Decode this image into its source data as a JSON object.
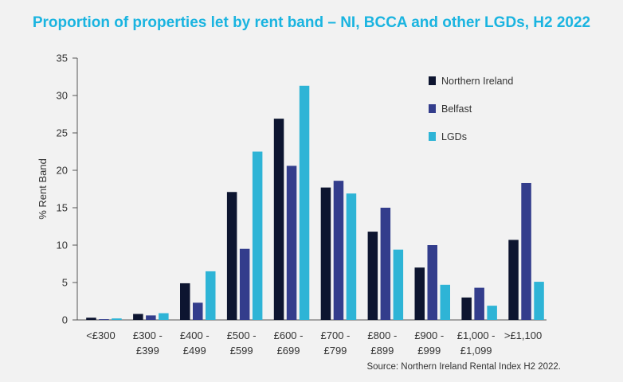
{
  "chart_data": {
    "type": "bar",
    "title": "Proportion of properties let by rent band – NI, BCCA and other LGDs, H2 2022",
    "ylabel": "% Rent Band",
    "xlabel": "",
    "ylim": [
      0,
      35
    ],
    "yticks": [
      0,
      5,
      10,
      15,
      20,
      25,
      30,
      35
    ],
    "categories": [
      [
        "<£300"
      ],
      [
        "£300 -",
        "£399"
      ],
      [
        "£400 -",
        "£499"
      ],
      [
        "£500 -",
        "£599"
      ],
      [
        "£600 -",
        "£699"
      ],
      [
        "£700 -",
        "£799"
      ],
      [
        "£800 -",
        "£899"
      ],
      [
        "£900 -",
        "£999"
      ],
      [
        "£1,000 -",
        "£1,099"
      ],
      [
        ">£1,100"
      ]
    ],
    "series": [
      {
        "name": "Northern Ireland",
        "color": "#0d1530",
        "values": [
          0.3,
          0.8,
          4.9,
          17.1,
          26.9,
          17.7,
          11.8,
          7.0,
          3.0,
          10.7
        ]
      },
      {
        "name": "Belfast",
        "color": "#333d8c",
        "values": [
          0.1,
          0.6,
          2.3,
          9.5,
          20.6,
          18.6,
          15.0,
          10.0,
          4.3,
          18.3
        ]
      },
      {
        "name": "LGDs",
        "color": "#2eb4d6",
        "values": [
          0.2,
          0.9,
          6.5,
          22.5,
          31.3,
          16.9,
          9.4,
          4.7,
          1.9,
          5.1
        ]
      }
    ],
    "legend_position": "top-right",
    "grid": false,
    "source": "Source: Northern Ireland Rental Index H2 2022."
  }
}
